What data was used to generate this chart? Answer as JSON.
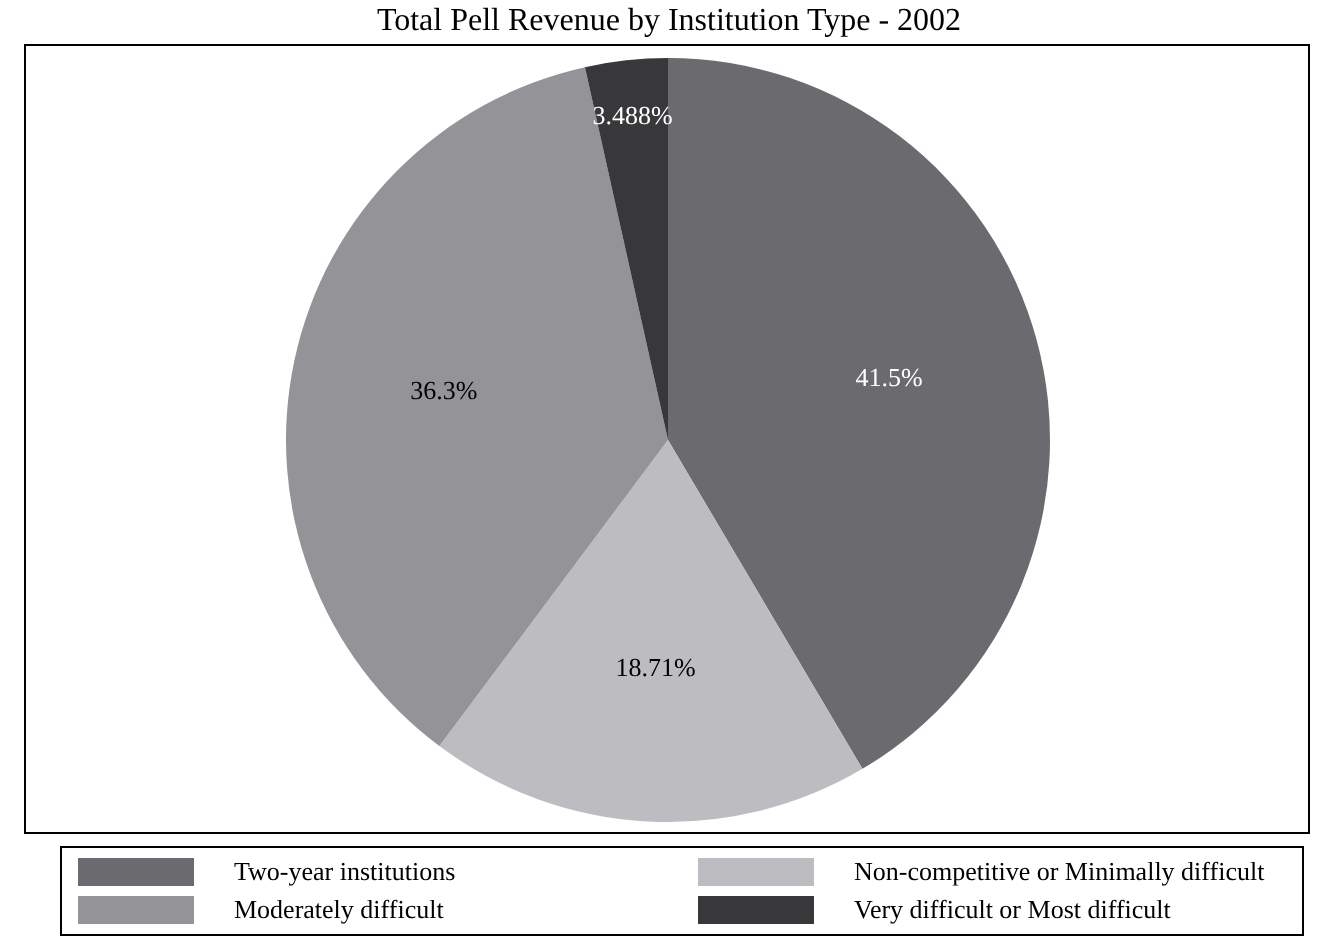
{
  "chart_data": {
    "type": "pie",
    "title": "Total Pell Revenue by Institution Type - 2002",
    "categories": [
      "Two-year institutions",
      "Non-competitive or Minimally difficult",
      "Moderately difficult",
      "Very difficult or Most difficult"
    ],
    "values": [
      41.5,
      18.71,
      36.3,
      3.488
    ],
    "value_labels": [
      "41.5%",
      "18.71%",
      "36.3%",
      "3.488%"
    ],
    "colors": [
      "#6b6b6f",
      "#bdbdc1",
      "#949498",
      "#38383a"
    ],
    "legend": "bottom"
  }
}
